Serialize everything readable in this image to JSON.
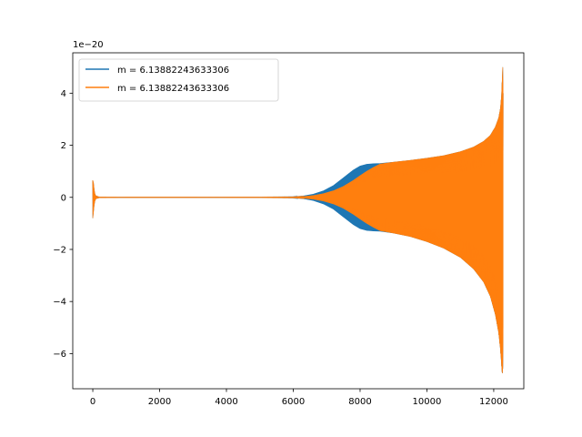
{
  "chart_data": {
    "type": "line",
    "title": "",
    "xlabel": "",
    "ylabel": "",
    "y_offset_text": "1e−20",
    "xlim": [
      -600,
      12900
    ],
    "ylim": [
      -7.35,
      5.55
    ],
    "x_ticks": [
      0,
      2000,
      4000,
      6000,
      8000,
      10000,
      12000
    ],
    "x_tick_labels": [
      "0",
      "2000",
      "4000",
      "6000",
      "8000",
      "10000",
      "12000"
    ],
    "y_ticks": [
      -6,
      -4,
      -2,
      0,
      2,
      4
    ],
    "y_tick_labels": [
      "−6",
      "−4",
      "−2",
      "0",
      "2",
      "4"
    ],
    "grid": false,
    "legend_position": "upper-left",
    "series": [
      {
        "name": "m = 6.13882243633306",
        "color": "#1f77b4",
        "envelope": {
          "x": [
            0,
            20,
            40,
            60,
            80,
            100,
            150,
            200,
            1000,
            3000,
            5000,
            6000,
            6300,
            6600,
            6900,
            7200,
            7500,
            7800,
            8000,
            8200,
            8400,
            8600,
            9000,
            9500,
            10000,
            10500,
            11000,
            11400,
            11700,
            11900,
            12050,
            12150,
            12200,
            12230,
            12250,
            12260,
            12270,
            12280
          ],
          "upper": [
            0.65,
            0.55,
            0.3,
            0.15,
            0.08,
            0.05,
            0.02,
            0.01,
            0.005,
            0.005,
            0.008,
            0.02,
            0.05,
            0.12,
            0.25,
            0.45,
            0.75,
            1.05,
            1.2,
            1.27,
            1.29,
            1.3,
            1.35,
            1.42,
            1.5,
            1.6,
            1.75,
            1.93,
            2.15,
            2.38,
            2.7,
            3.05,
            3.4,
            3.8,
            4.3,
            4.7,
            5.0,
            4.0
          ],
          "lower": [
            -0.8,
            -0.55,
            -0.3,
            -0.15,
            -0.08,
            -0.05,
            -0.02,
            -0.01,
            -0.005,
            -0.005,
            -0.008,
            -0.02,
            -0.05,
            -0.12,
            -0.25,
            -0.45,
            -0.75,
            -1.05,
            -1.2,
            -1.27,
            -1.29,
            -1.3,
            -1.37,
            -1.5,
            -1.7,
            -1.95,
            -2.3,
            -2.75,
            -3.25,
            -3.8,
            -4.5,
            -5.2,
            -5.8,
            -6.3,
            -6.7,
            -6.75,
            -6.5,
            -5.0
          ]
        }
      },
      {
        "name": "m = 6.13882243633306",
        "color": "#ff7f0e",
        "envelope": {
          "x": [
            0,
            20,
            40,
            60,
            80,
            100,
            150,
            200,
            1000,
            3000,
            5000,
            6000,
            6300,
            6600,
            6900,
            7200,
            7500,
            7800,
            8000,
            8200,
            8400,
            8600,
            9000,
            9500,
            10000,
            10500,
            11000,
            11400,
            11700,
            11900,
            12050,
            12150,
            12200,
            12230,
            12250,
            12260,
            12270,
            12280
          ],
          "upper": [
            0.65,
            0.55,
            0.3,
            0.15,
            0.08,
            0.05,
            0.02,
            0.01,
            0.005,
            0.005,
            0.008,
            0.015,
            0.03,
            0.07,
            0.14,
            0.25,
            0.42,
            0.65,
            0.83,
            1.0,
            1.15,
            1.28,
            1.35,
            1.42,
            1.5,
            1.6,
            1.75,
            1.93,
            2.15,
            2.38,
            2.7,
            3.05,
            3.4,
            3.8,
            4.3,
            4.7,
            5.0,
            4.0
          ],
          "lower": [
            -0.8,
            -0.55,
            -0.3,
            -0.15,
            -0.08,
            -0.05,
            -0.02,
            -0.01,
            -0.005,
            -0.005,
            -0.008,
            -0.015,
            -0.03,
            -0.07,
            -0.14,
            -0.25,
            -0.42,
            -0.65,
            -0.83,
            -1.0,
            -1.15,
            -1.28,
            -1.37,
            -1.5,
            -1.7,
            -1.95,
            -2.3,
            -2.75,
            -3.25,
            -3.8,
            -4.5,
            -5.2,
            -5.8,
            -6.3,
            -6.7,
            -6.75,
            -6.5,
            -5.0
          ]
        }
      }
    ]
  }
}
